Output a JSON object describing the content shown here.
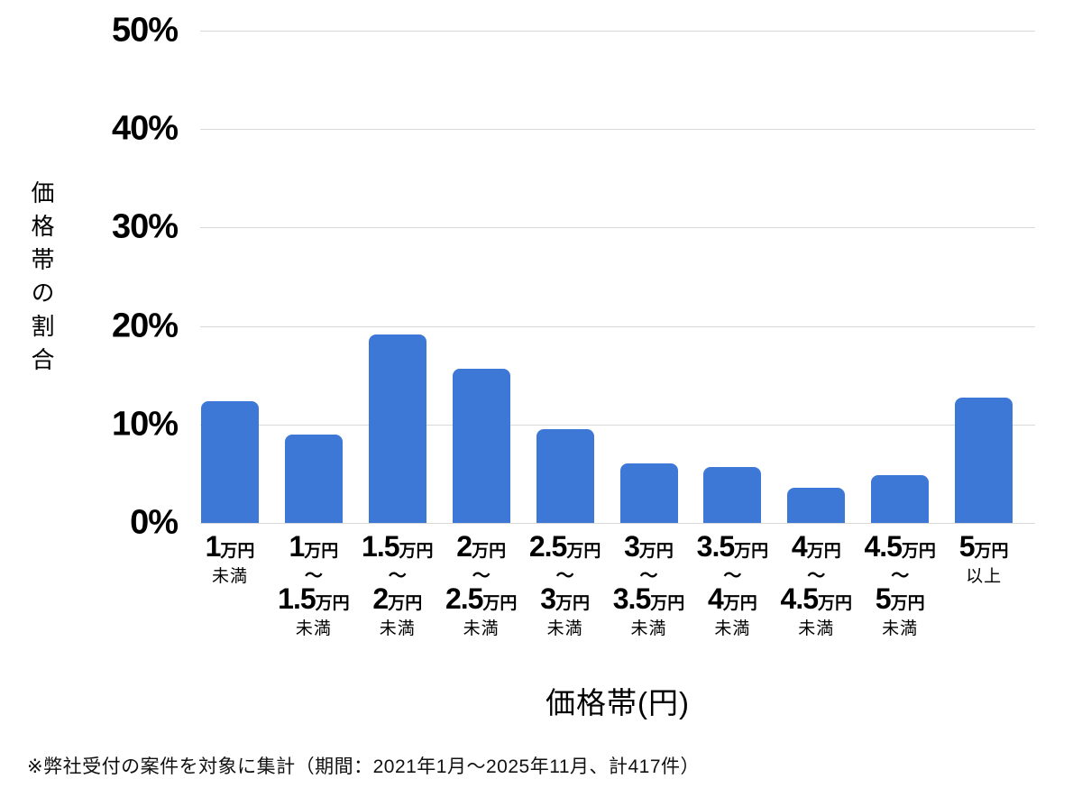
{
  "chart_data": {
    "type": "bar",
    "title": "",
    "xlabel": "価格帯(円)",
    "ylabel": "価格帯の割合",
    "ylim": [
      0,
      50
    ],
    "grid": true,
    "legend_position": "none",
    "y_ticks": [
      0,
      10,
      20,
      30,
      40,
      50
    ],
    "y_tick_labels": [
      "0%",
      "10%",
      "20%",
      "30%",
      "40%",
      "50%"
    ],
    "categories": [
      "1万円未満",
      "1万円～1.5万円未満",
      "1.5万円～2万円未満",
      "2万円～2.5万円未満",
      "2.5万円～3万円未満",
      "3万円～3.5万円未満",
      "3.5万円～4万円未満",
      "4万円～4.5万円未満",
      "4.5万円～5万円未満",
      "5万円以上"
    ],
    "values": [
      12.4,
      9.0,
      19.1,
      15.7,
      9.5,
      6.0,
      5.7,
      3.6,
      4.9,
      12.7
    ],
    "x_tick_structured": [
      {
        "from": "1",
        "from_unit": "万円",
        "tilde": "",
        "to": "",
        "to_unit": "",
        "qualifier": "未満"
      },
      {
        "from": "1",
        "from_unit": "万円",
        "tilde": "～",
        "to": "1.5",
        "to_unit": "万円",
        "qualifier": "未満"
      },
      {
        "from": "1.5",
        "from_unit": "万円",
        "tilde": "～",
        "to": "2",
        "to_unit": "万円",
        "qualifier": "未満"
      },
      {
        "from": "2",
        "from_unit": "万円",
        "tilde": "～",
        "to": "2.5",
        "to_unit": "万円",
        "qualifier": "未満"
      },
      {
        "from": "2.5",
        "from_unit": "万円",
        "tilde": "～",
        "to": "3",
        "to_unit": "万円",
        "qualifier": "未満"
      },
      {
        "from": "3",
        "from_unit": "万円",
        "tilde": "～",
        "to": "3.5",
        "to_unit": "万円",
        "qualifier": "未満"
      },
      {
        "from": "3.5",
        "from_unit": "万円",
        "tilde": "～",
        "to": "4",
        "to_unit": "万円",
        "qualifier": "未満"
      },
      {
        "from": "4",
        "from_unit": "万円",
        "tilde": "～",
        "to": "4.5",
        "to_unit": "万円",
        "qualifier": "未満"
      },
      {
        "from": "4.5",
        "from_unit": "万円",
        "tilde": "～",
        "to": "5",
        "to_unit": "万円",
        "qualifier": "未満"
      },
      {
        "from": "5",
        "from_unit": "万円",
        "tilde": "",
        "to": "",
        "to_unit": "",
        "qualifier": "以上"
      }
    ],
    "colors": {
      "bar": "#3d78d6",
      "gridline": "#d9d9d9",
      "text": "#000000"
    }
  },
  "footer": {
    "note": "※弊社受付の案件を対象に集計（期間：2021年1月～2025年11月、計417件）"
  }
}
